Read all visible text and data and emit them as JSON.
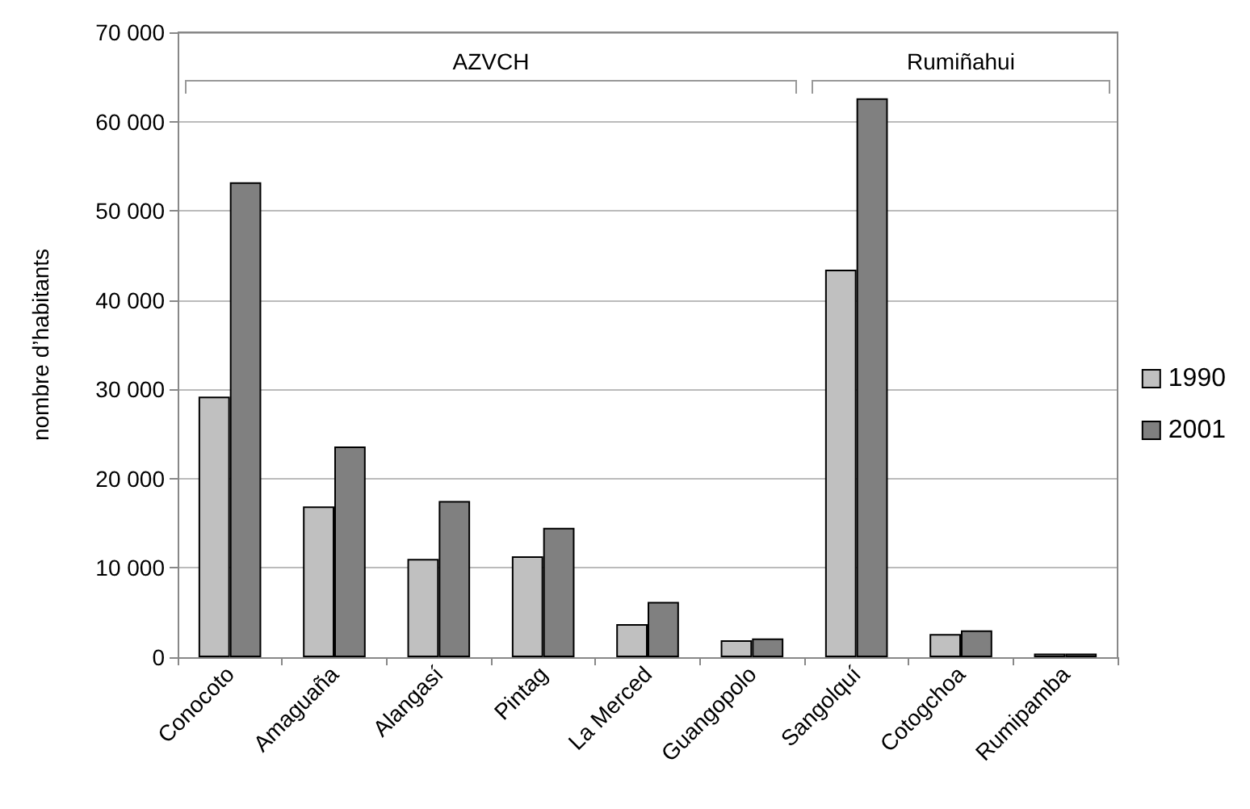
{
  "chart_data": {
    "type": "bar",
    "ylabel": "nombre d’habitants",
    "categories": [
      "Conocoto",
      "Amaguaña",
      "Alangasí",
      "Pintag",
      "La Merced",
      "Guangopolo",
      "Sangolquí",
      "Cotogchoa",
      "Rumipamba"
    ],
    "series": [
      {
        "name": "1990",
        "color": "#c0c0c0",
        "values": [
          29200,
          16900,
          11000,
          11300,
          3700,
          1900,
          43400,
          2600,
          400
        ]
      },
      {
        "name": "2001",
        "color": "#808080",
        "values": [
          53200,
          23600,
          17500,
          14500,
          6200,
          2100,
          62600,
          3000,
          400
        ]
      }
    ],
    "ylim": [
      0,
      70000
    ],
    "yticks": [
      {
        "value": 0,
        "label": "0"
      },
      {
        "value": 10000,
        "label": "10 000"
      },
      {
        "value": 20000,
        "label": "20 000"
      },
      {
        "value": 30000,
        "label": "30 000"
      },
      {
        "value": 40000,
        "label": "40 000"
      },
      {
        "value": 50000,
        "label": "50 000"
      },
      {
        "value": 60000,
        "label": "60 000"
      },
      {
        "value": 70000,
        "label": "70 000"
      }
    ],
    "annotations": [
      "AZVCH",
      "Rumiñahui"
    ],
    "grid": "y",
    "legend": "right"
  }
}
